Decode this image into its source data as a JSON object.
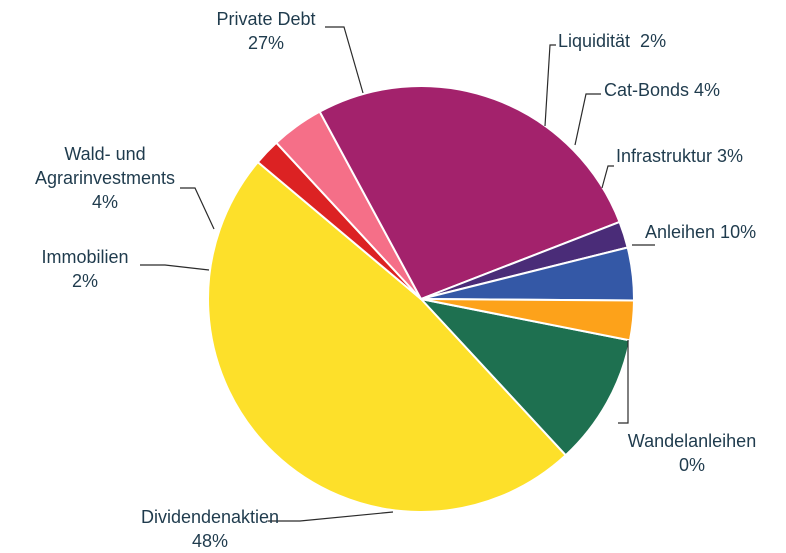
{
  "chart_data": {
    "type": "pie",
    "legend": "none",
    "slices": [
      {
        "label": "Anleihen 10%",
        "value": 10,
        "color": "#1e7050"
      },
      {
        "label": [
          "Wandelanleihen",
          "0%"
        ],
        "value": 0,
        "color": "#1a5a8a"
      },
      {
        "label": [
          "Dividendenaktien",
          "48%"
        ],
        "value": 48,
        "color": "#fde02a"
      },
      {
        "label": [
          "Immobilien",
          "2%"
        ],
        "value": 2,
        "color": "#dc2223"
      },
      {
        "label": [
          "Wald- und",
          "Agrarinvestments",
          "4%"
        ],
        "value": 4,
        "color": "#f56f88"
      },
      {
        "label": [
          "Private Debt",
          "27%"
        ],
        "value": 27,
        "color": "#a3226c"
      },
      {
        "label": "Liquidität  2%",
        "value": 2,
        "color": "#4a2c78"
      },
      {
        "label": "Cat-Bonds 4%",
        "value": 4,
        "color": "#3458a6"
      },
      {
        "label": "Infrastruktur 3%",
        "value": 3,
        "color": "#fda21a"
      }
    ]
  }
}
